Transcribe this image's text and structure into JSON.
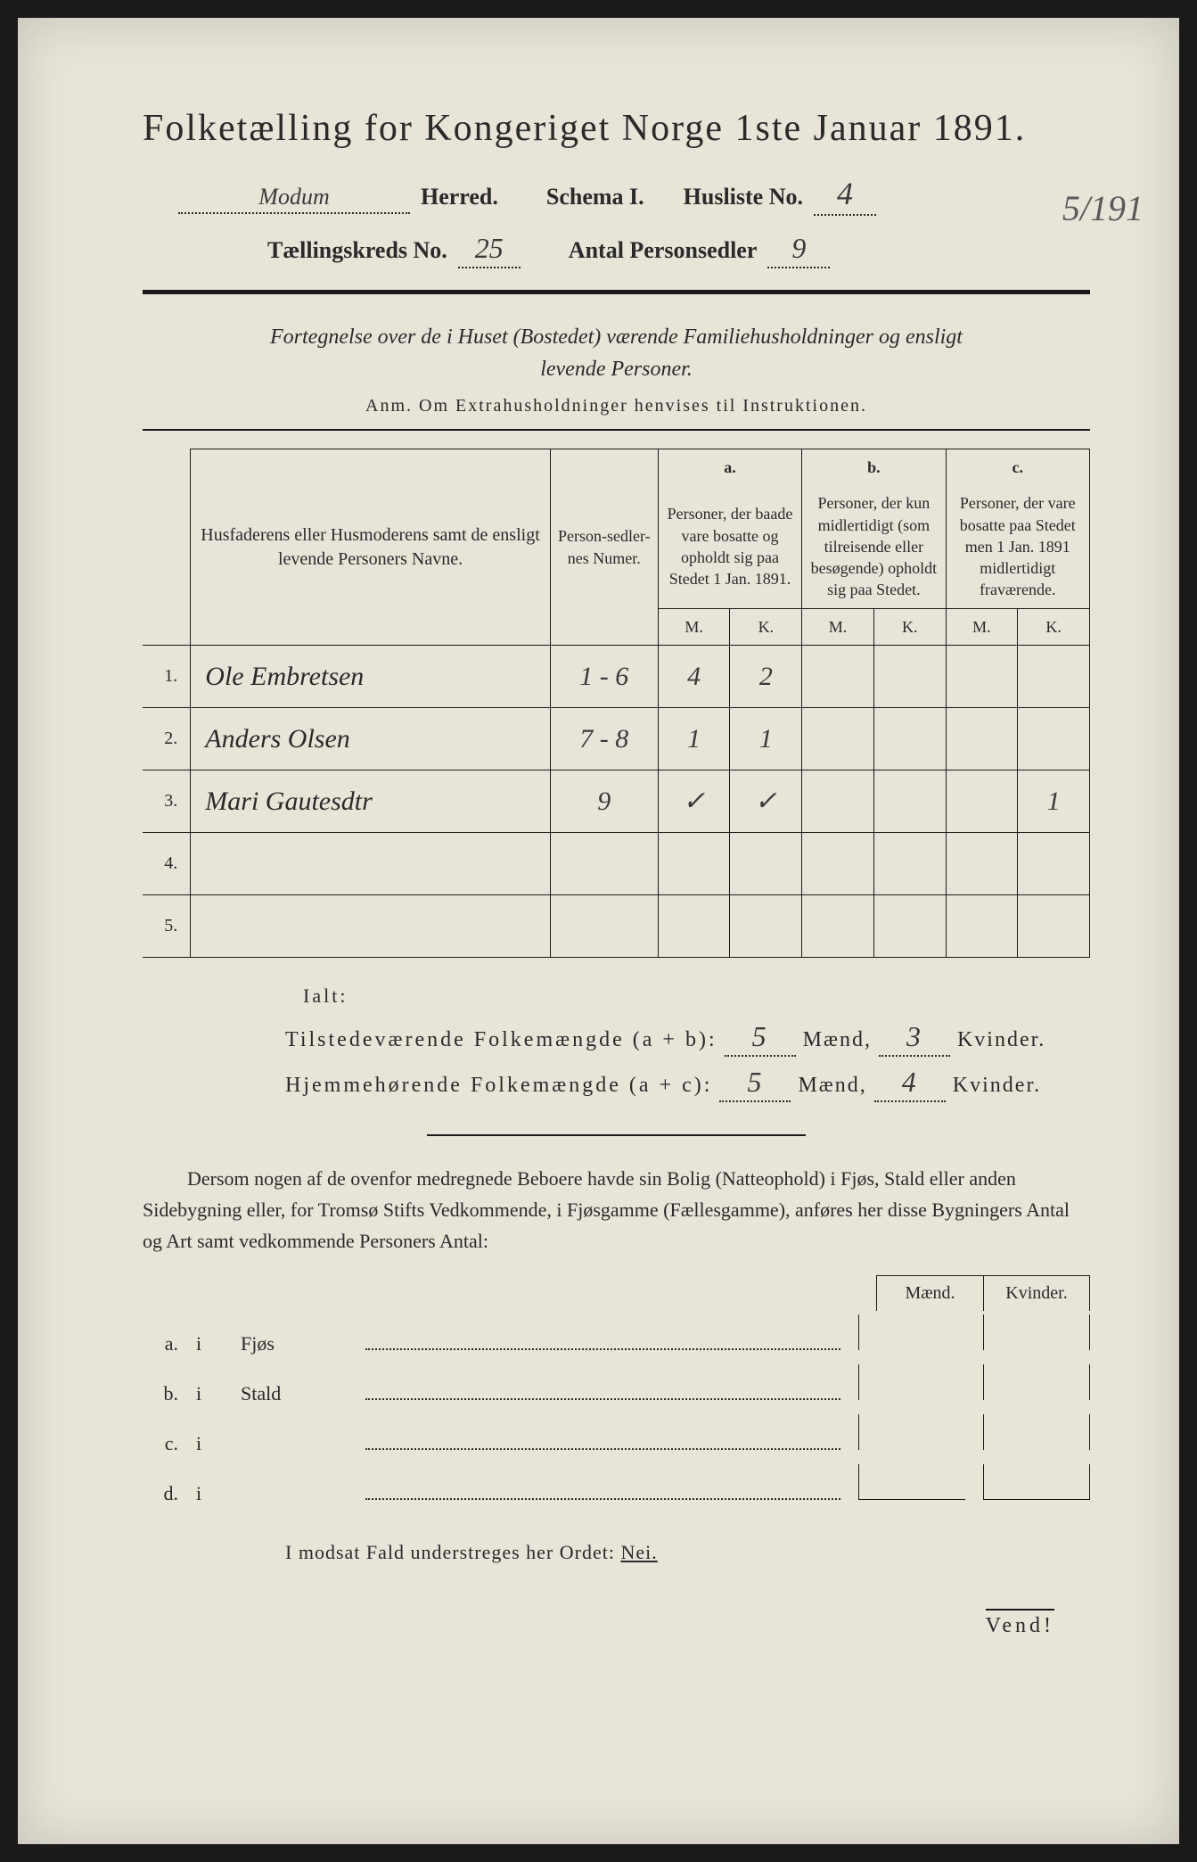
{
  "colors": {
    "paper_bg": "#e8e4d8",
    "ink": "#2a2a2a",
    "handwriting": "#3a3a3a",
    "shadow": "#1a1a1a"
  },
  "title": "Folketælling for Kongeriget Norge 1ste Januar 1891.",
  "header": {
    "herred_label": "Herred.",
    "herred_value": "Modum",
    "schema_label": "Schema I.",
    "husliste_label": "Husliste No.",
    "husliste_value": "4",
    "margin_note": "5/191",
    "kreds_label": "Tællingskreds No.",
    "kreds_value": "25",
    "personsedler_label": "Antal Personsedler",
    "personsedler_value": "9"
  },
  "subheading_line1": "Fortegnelse over de i Huset (Bostedet) værende Familiehusholdninger og ensligt",
  "subheading_line2": "levende Personer.",
  "anm_line": "Anm. Om Extrahusholdninger henvises til Instruktionen.",
  "table": {
    "col_name": "Husfaderens eller Husmoderens samt de ensligt levende Personers Navne.",
    "col_numer": "Person-sedler-nes Numer.",
    "col_a_label": "a.",
    "col_a_text": "Personer, der baade vare bosatte og opholdt sig paa Stedet 1 Jan. 1891.",
    "col_b_label": "b.",
    "col_b_text": "Personer, der kun midlertidigt (som tilreisende eller besøgende) opholdt sig paa Stedet.",
    "col_c_label": "c.",
    "col_c_text": "Personer, der vare bosatte paa Stedet men 1 Jan. 1891 midlertidigt fraværende.",
    "m_label": "M.",
    "k_label": "K.",
    "rows": [
      {
        "n": "1.",
        "name": "Ole Embretsen",
        "numer": "1 - 6",
        "a_m": "4",
        "a_k": "2",
        "b_m": "",
        "b_k": "",
        "c_m": "",
        "c_k": ""
      },
      {
        "n": "2.",
        "name": "Anders Olsen",
        "numer": "7 - 8",
        "a_m": "1",
        "a_k": "1",
        "b_m": "",
        "b_k": "",
        "c_m": "",
        "c_k": ""
      },
      {
        "n": "3.",
        "name": "Mari Gautesdtr",
        "numer": "9",
        "a_m": "✓",
        "a_k": "✓",
        "b_m": "",
        "b_k": "",
        "c_m": "",
        "c_k": "1"
      },
      {
        "n": "4.",
        "name": "",
        "numer": "",
        "a_m": "",
        "a_k": "",
        "b_m": "",
        "b_k": "",
        "c_m": "",
        "c_k": ""
      },
      {
        "n": "5.",
        "name": "",
        "numer": "",
        "a_m": "",
        "a_k": "",
        "b_m": "",
        "b_k": "",
        "c_m": "",
        "c_k": ""
      }
    ]
  },
  "ialt": {
    "label": "Ialt:",
    "row1_label": "Tilstedeværende Folkemængde (a + b):",
    "row1_m": "5",
    "row1_k": "3",
    "row2_label": "Hjemmehørende Folkemængde (a + c):",
    "row2_m": "5",
    "row2_k": "4",
    "maend": "Mænd,",
    "kvinder": "Kvinder."
  },
  "paragraph": "Dersom nogen af de ovenfor medregnede Beboere havde sin Bolig (Natteophold) i Fjøs, Stald eller anden Sidebygning eller, for Tromsø Stifts Vedkommende, i Fjøsgamme (Fællesgamme), anføres her disse Bygningers Antal og Art samt vedkommende Personers Antal:",
  "outbuildings": {
    "maend": "Mænd.",
    "kvinder": "Kvinder.",
    "rows": [
      {
        "label": "a.",
        "i": "i",
        "name": "Fjøs"
      },
      {
        "label": "b.",
        "i": "i",
        "name": "Stald"
      },
      {
        "label": "c.",
        "i": "i",
        "name": ""
      },
      {
        "label": "d.",
        "i": "i",
        "name": ""
      }
    ]
  },
  "modsat_line": "I modsat Fald understreges her Ordet: ",
  "modsat_nei": "Nei.",
  "vend": "Vend!"
}
